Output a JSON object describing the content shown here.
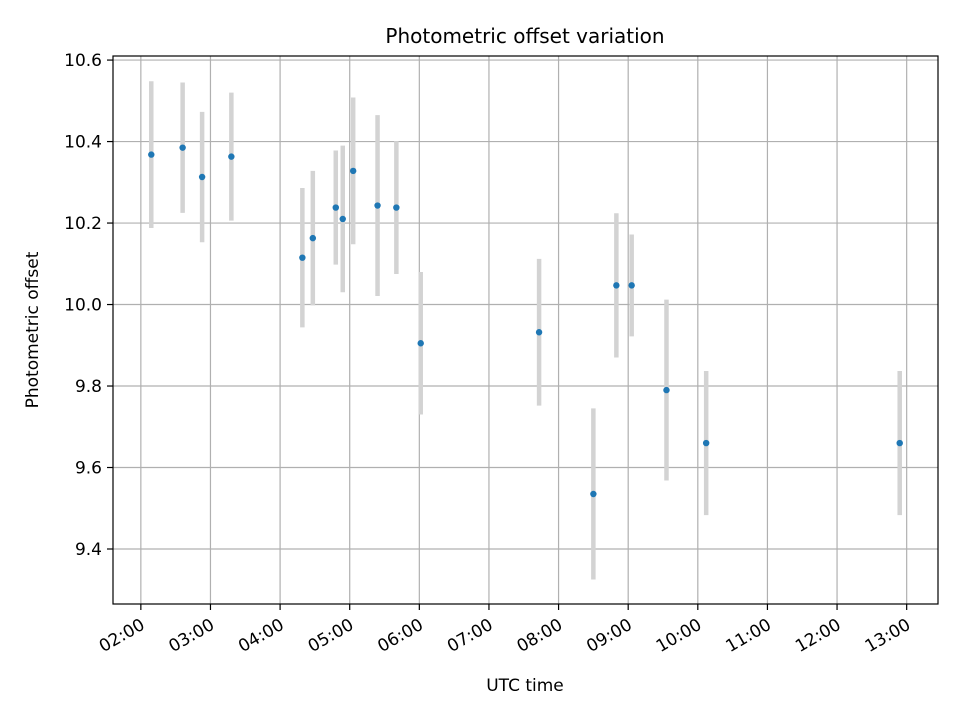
{
  "chart_data": {
    "type": "scatter",
    "title": "Photometric offset variation",
    "xlabel": "UTC time",
    "ylabel": "Photometric offset",
    "x_unit": "hours UTC",
    "xlim": [
      1.6,
      13.45
    ],
    "ylim": [
      9.265,
      10.61
    ],
    "x_ticks": [
      2,
      3,
      4,
      5,
      6,
      7,
      8,
      9,
      10,
      11,
      12,
      13
    ],
    "x_tick_labels": [
      "02:00",
      "03:00",
      "04:00",
      "05:00",
      "06:00",
      "07:00",
      "08:00",
      "09:00",
      "10:00",
      "11:00",
      "12:00",
      "13:00"
    ],
    "y_ticks": [
      9.4,
      9.6,
      9.8,
      10.0,
      10.2,
      10.4,
      10.6
    ],
    "y_tick_labels": [
      "9.4",
      "9.6",
      "9.8",
      "10.0",
      "10.2",
      "10.4",
      "10.6"
    ],
    "grid": true,
    "colors": {
      "point": "#1f77b4",
      "errorbar": "#d3d3d3",
      "grid": "#b0b0b0"
    },
    "points": [
      {
        "x": 2.15,
        "y": 10.368,
        "err": 0.18
      },
      {
        "x": 2.6,
        "y": 10.385,
        "err": 0.16
      },
      {
        "x": 2.88,
        "y": 10.313,
        "err": 0.16
      },
      {
        "x": 3.3,
        "y": 10.363,
        "err": 0.157
      },
      {
        "x": 4.32,
        "y": 10.115,
        "err": 0.171
      },
      {
        "x": 4.47,
        "y": 10.163,
        "err": 0.165
      },
      {
        "x": 4.8,
        "y": 10.238,
        "err": 0.14
      },
      {
        "x": 4.9,
        "y": 10.21,
        "err": 0.18
      },
      {
        "x": 5.05,
        "y": 10.328,
        "err": 0.18
      },
      {
        "x": 5.4,
        "y": 10.243,
        "err": 0.222
      },
      {
        "x": 5.67,
        "y": 10.238,
        "err": 0.163
      },
      {
        "x": 6.02,
        "y": 9.905,
        "err": 0.175
      },
      {
        "x": 7.72,
        "y": 9.932,
        "err": 0.18
      },
      {
        "x": 8.5,
        "y": 9.535,
        "err": 0.21
      },
      {
        "x": 8.83,
        "y": 10.047,
        "err": 0.177
      },
      {
        "x": 9.05,
        "y": 10.047,
        "err": 0.125
      },
      {
        "x": 9.55,
        "y": 9.79,
        "err": 0.222
      },
      {
        "x": 10.12,
        "y": 9.66,
        "err": 0.177
      },
      {
        "x": 12.9,
        "y": 9.66,
        "err": 0.177
      }
    ]
  }
}
